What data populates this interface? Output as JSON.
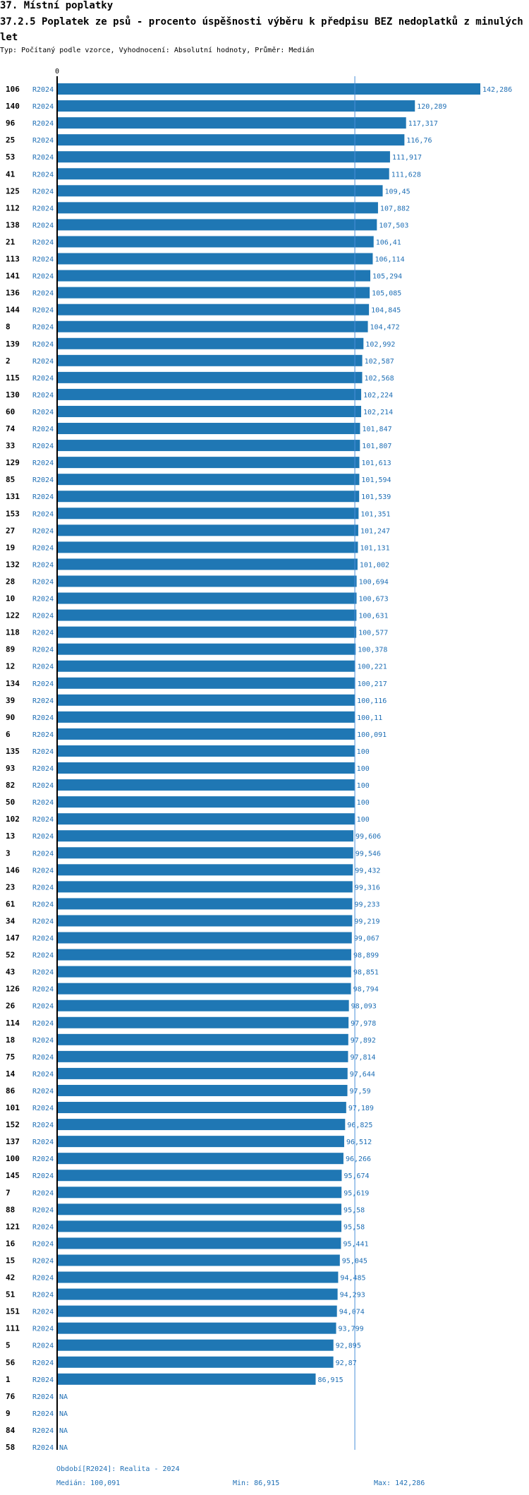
{
  "header": {
    "section_title": "37. Místní poplatky",
    "chart_title": "37.2.5 Poplatek ze psů - procento úspěšnosti výběru k předpisu BEZ nedoplatků z minulých let",
    "subtitle": "Typ: Počítaný podle vzorce, Vyhodnocení: Absolutní hodnoty, Průměr: Medián"
  },
  "footer": {
    "period": "Období[R2024]: Realita - 2024",
    "median": "Medián: 100,091",
    "min": "Min: 86,915",
    "max": "Max: 142,286"
  },
  "colors": {
    "bar": "#1f77b4",
    "value_text": "#1f6fb5",
    "median_line": "#4a90d9",
    "axis": "#000000"
  },
  "chart_data": {
    "type": "bar",
    "orientation": "horizontal",
    "axis_zero_label": "0",
    "series_label": "R2024",
    "median": 100.091,
    "xlim": [
      0,
      142.286
    ],
    "categories": [
      "106",
      "140",
      "96",
      "25",
      "53",
      "41",
      "125",
      "112",
      "138",
      "21",
      "113",
      "141",
      "136",
      "144",
      "8",
      "139",
      "2",
      "115",
      "130",
      "60",
      "74",
      "33",
      "129",
      "85",
      "131",
      "153",
      "27",
      "19",
      "132",
      "28",
      "10",
      "122",
      "118",
      "89",
      "12",
      "134",
      "39",
      "90",
      "6",
      "135",
      "93",
      "82",
      "50",
      "102",
      "13",
      "3",
      "146",
      "23",
      "61",
      "34",
      "147",
      "52",
      "43",
      "126",
      "26",
      "114",
      "18",
      "75",
      "14",
      "86",
      "101",
      "152",
      "137",
      "100",
      "145",
      "7",
      "88",
      "121",
      "16",
      "15",
      "42",
      "51",
      "151",
      "111",
      "5",
      "56",
      "1",
      "76",
      "9",
      "84",
      "58"
    ],
    "values": [
      142.286,
      120.289,
      117.317,
      116.76,
      111.917,
      111.628,
      109.45,
      107.882,
      107.503,
      106.41,
      106.114,
      105.294,
      105.085,
      104.845,
      104.472,
      102.992,
      102.587,
      102.568,
      102.224,
      102.214,
      101.847,
      101.807,
      101.613,
      101.594,
      101.539,
      101.351,
      101.247,
      101.131,
      101.002,
      100.694,
      100.673,
      100.631,
      100.577,
      100.378,
      100.221,
      100.217,
      100.116,
      100.11,
      100.091,
      100,
      100,
      100,
      100,
      100,
      99.606,
      99.546,
      99.432,
      99.316,
      99.233,
      99.219,
      99.067,
      98.899,
      98.851,
      98.794,
      98.093,
      97.978,
      97.892,
      97.814,
      97.644,
      97.59,
      97.189,
      96.825,
      96.512,
      96.266,
      95.674,
      95.619,
      95.58,
      95.58,
      95.441,
      95.045,
      94.485,
      94.293,
      94.074,
      93.799,
      92.895,
      92.87,
      86.915,
      null,
      null,
      null,
      null
    ],
    "value_labels": [
      "142,286",
      "120,289",
      "117,317",
      "116,76",
      "111,917",
      "111,628",
      "109,45",
      "107,882",
      "107,503",
      "106,41",
      "106,114",
      "105,294",
      "105,085",
      "104,845",
      "104,472",
      "102,992",
      "102,587",
      "102,568",
      "102,224",
      "102,214",
      "101,847",
      "101,807",
      "101,613",
      "101,594",
      "101,539",
      "101,351",
      "101,247",
      "101,131",
      "101,002",
      "100,694",
      "100,673",
      "100,631",
      "100,577",
      "100,378",
      "100,221",
      "100,217",
      "100,116",
      "100,11",
      "100,091",
      "100",
      "100",
      "100",
      "100",
      "100",
      "99,606",
      "99,546",
      "99,432",
      "99,316",
      "99,233",
      "99,219",
      "99,067",
      "98,899",
      "98,851",
      "98,794",
      "98,093",
      "97,978",
      "97,892",
      "97,814",
      "97,644",
      "97,59",
      "97,189",
      "96,825",
      "96,512",
      "96,266",
      "95,674",
      "95,619",
      "95,58",
      "95,58",
      "95,441",
      "95,045",
      "94,485",
      "94,293",
      "94,074",
      "93,799",
      "92,895",
      "92,87",
      "86,915",
      "NA",
      "NA",
      "NA",
      "NA"
    ]
  }
}
